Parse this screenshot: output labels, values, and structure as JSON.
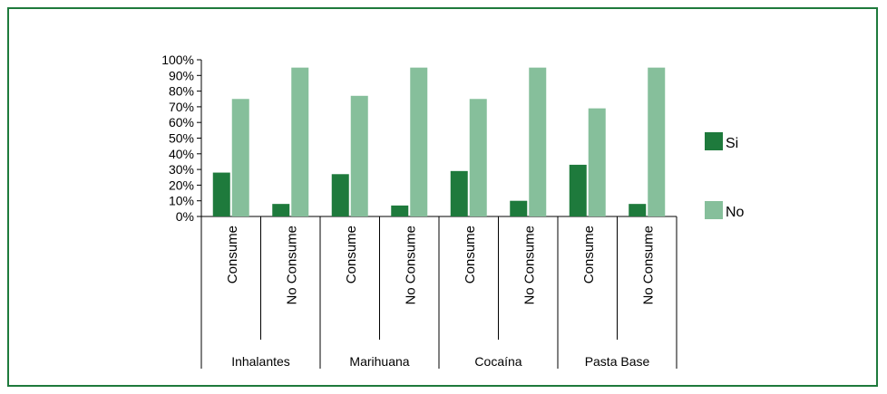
{
  "chart_data": {
    "type": "bar",
    "title": "",
    "xlabel": "",
    "ylabel": "",
    "ylim": [
      0,
      100
    ],
    "yticks": [
      "0%",
      "10%",
      "20%",
      "30%",
      "40%",
      "50%",
      "60%",
      "70%",
      "80%",
      "90%",
      "100%"
    ],
    "groups": [
      "Inhalantes",
      "Marihuana",
      "Cocaína",
      "Pasta Base"
    ],
    "categories": [
      "Consume",
      "No Consume",
      "Consume",
      "No Consume",
      "Consume",
      "No Consume",
      "Consume",
      "No Consume"
    ],
    "series": [
      {
        "name": "Si",
        "color": "#1e7a3c",
        "values": [
          28,
          8,
          27,
          7,
          29,
          10,
          33,
          8
        ]
      },
      {
        "name": "No",
        "color": "#86bf9b",
        "values": [
          75,
          95,
          77,
          95,
          75,
          95,
          69,
          95
        ]
      }
    ],
    "legend_position": "right",
    "grid": false
  }
}
